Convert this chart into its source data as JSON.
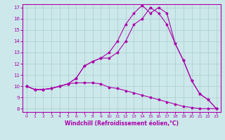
{
  "xlabel": "Windchill (Refroidissement éolien,°C)",
  "background_color": "#cce8ea",
  "line_color": "#aa00aa",
  "grid_color": "#aacccc",
  "xlim": [
    -0.5,
    23.5
  ],
  "ylim": [
    7.7,
    17.3
  ],
  "xticks": [
    0,
    1,
    2,
    3,
    4,
    5,
    6,
    7,
    8,
    9,
    10,
    11,
    12,
    13,
    14,
    15,
    16,
    17,
    18,
    19,
    20,
    21,
    22,
    23
  ],
  "yticks": [
    8,
    9,
    10,
    11,
    12,
    13,
    14,
    15,
    16,
    17
  ],
  "line1_x": [
    0,
    1,
    2,
    3,
    4,
    5,
    6,
    7,
    8,
    9,
    10,
    11,
    12,
    13,
    14,
    15,
    16,
    17,
    18,
    19,
    20,
    21,
    22,
    23
  ],
  "line1_y": [
    10.0,
    9.7,
    9.7,
    9.8,
    10.0,
    10.2,
    10.3,
    10.3,
    10.3,
    10.2,
    9.9,
    9.8,
    9.6,
    9.4,
    9.2,
    9.0,
    8.8,
    8.6,
    8.4,
    8.2,
    8.1,
    8.0,
    8.0,
    8.0
  ],
  "line2_x": [
    0,
    1,
    2,
    3,
    4,
    5,
    6,
    7,
    8,
    9,
    10,
    11,
    12,
    13,
    14,
    15,
    16,
    17,
    18,
    19,
    20,
    21,
    22,
    23
  ],
  "line2_y": [
    10.0,
    9.7,
    9.7,
    9.8,
    10.0,
    10.2,
    10.7,
    11.8,
    12.2,
    12.5,
    12.5,
    13.0,
    14.0,
    15.5,
    16.0,
    17.0,
    16.5,
    15.5,
    13.8,
    12.3,
    10.5,
    9.3,
    8.8,
    8.0
  ],
  "line3_x": [
    0,
    1,
    2,
    3,
    4,
    5,
    6,
    7,
    8,
    9,
    10,
    11,
    12,
    13,
    14,
    15,
    16,
    17,
    18,
    19,
    20,
    21,
    22,
    23
  ],
  "line3_y": [
    10.0,
    9.7,
    9.7,
    9.8,
    10.0,
    10.2,
    10.7,
    11.8,
    12.2,
    12.5,
    13.0,
    14.0,
    15.5,
    16.5,
    17.2,
    16.5,
    17.0,
    16.5,
    13.8,
    12.3,
    10.5,
    9.3,
    8.8,
    8.0
  ]
}
